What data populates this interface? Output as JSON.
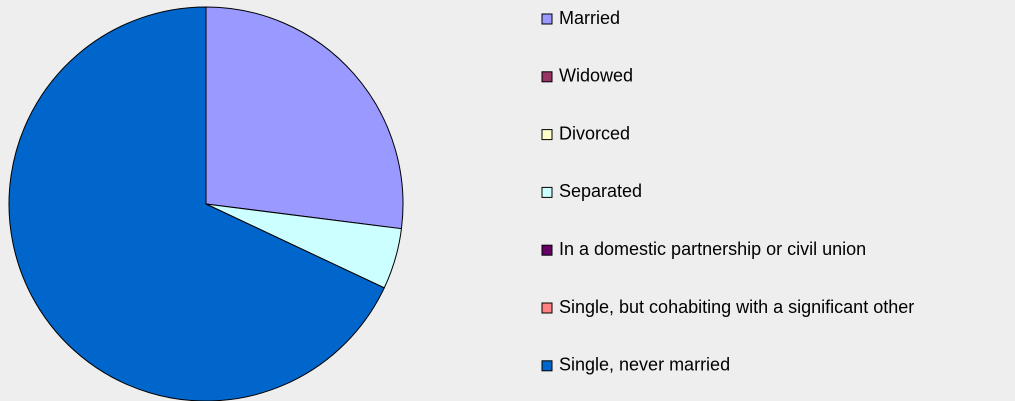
{
  "chart_data": {
    "type": "pie",
    "categories": [
      "Married",
      "Widowed",
      "Divorced",
      "Separated",
      "In a domestic partnership or civil union",
      "Single, but cohabiting with a significant other",
      "Single, never married"
    ],
    "values": [
      27,
      0,
      0,
      5,
      0,
      0,
      68
    ],
    "colors": [
      "#9999ff",
      "#993366",
      "#ffffcc",
      "#ccffff",
      "#660066",
      "#ff8080",
      "#0066cc"
    ],
    "legend": "right"
  }
}
